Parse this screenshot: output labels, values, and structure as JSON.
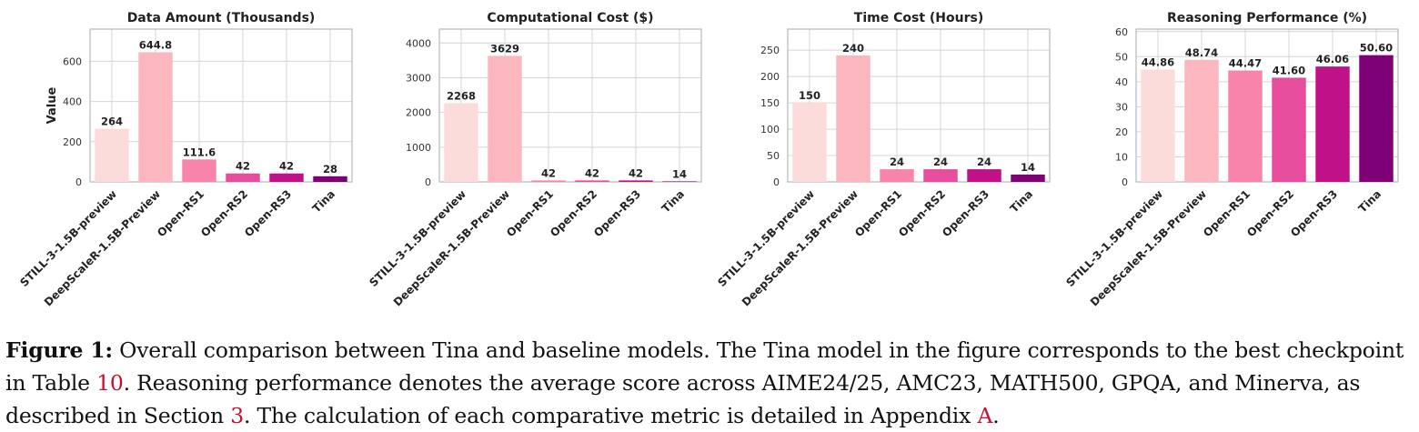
{
  "chart_data": [
    {
      "type": "bar",
      "title": "Data Amount (Thousands)",
      "ylabel": "Value",
      "categories": [
        "STILL-3-1.5B-preview",
        "DeepScaleR-1.5B-Preview",
        "Open-RS1",
        "Open-RS2",
        "Open-RS3",
        "Tina"
      ],
      "values": [
        264,
        644.8,
        111.6,
        42,
        42,
        28
      ],
      "value_labels": [
        "264",
        "644.8",
        "111.6",
        "42",
        "42",
        "28"
      ],
      "ylim": [
        0,
        760
      ],
      "yticks": [
        0,
        200,
        400,
        600
      ],
      "grid": true
    },
    {
      "type": "bar",
      "title": "Computational Cost ($)",
      "ylabel": "",
      "categories": [
        "STILL-3-1.5B-preview",
        "DeepScaleR-1.5B-Preview",
        "Open-RS1",
        "Open-RS2",
        "Open-RS3",
        "Tina"
      ],
      "values": [
        2268,
        3629,
        42,
        42,
        42,
        14
      ],
      "value_labels": [
        "2268",
        "3629",
        "42",
        "42",
        "42",
        "14"
      ],
      "ylim": [
        0,
        4400
      ],
      "yticks": [
        0,
        1000,
        2000,
        3000,
        4000
      ],
      "grid": true
    },
    {
      "type": "bar",
      "title": "Time Cost (Hours)",
      "ylabel": "",
      "categories": [
        "STILL-3-1.5B-preview",
        "DeepScaleR-1.5B-Preview",
        "Open-RS1",
        "Open-RS2",
        "Open-RS3",
        "Tina"
      ],
      "values": [
        150,
        240,
        24,
        24,
        24,
        14
      ],
      "value_labels": [
        "150",
        "240",
        "24",
        "24",
        "24",
        "14"
      ],
      "ylim": [
        0,
        290
      ],
      "yticks": [
        0,
        50,
        100,
        150,
        200,
        250
      ],
      "grid": true
    },
    {
      "type": "bar",
      "title": "Reasoning Performance (%)",
      "ylabel": "",
      "categories": [
        "STILL-3-1.5B-preview",
        "DeepScaleR-1.5B-Preview",
        "Open-RS1",
        "Open-RS2",
        "Open-RS3",
        "Tina"
      ],
      "values": [
        44.86,
        48.74,
        44.47,
        41.6,
        46.06,
        50.6
      ],
      "value_labels": [
        "44.86",
        "48.74",
        "44.47",
        "41.60",
        "46.06",
        "50.60"
      ],
      "ylim": [
        0,
        61
      ],
      "yticks": [
        0,
        10,
        20,
        30,
        40,
        50,
        60
      ],
      "grid": true
    }
  ],
  "colors": [
    "#fcdcdb",
    "#fbb7bd",
    "#f883ab",
    "#e64d9c",
    "#bf1288",
    "#7d0075"
  ],
  "caption": {
    "label": "Figure 1:",
    "text_1": " Overall comparison between Tina and baseline models. The Tina model in the figure corresponds to the best checkpoint in Table ",
    "ref_table": "10",
    "text_2": ". Reasoning performance denotes the average score across AIME24/25, AMC23, MATH500, GPQA, and Minerva, as described in Section ",
    "ref_section": "3",
    "text_3": ". The calculation of each comparative metric is detailed in Appendix ",
    "ref_appendix": "A",
    "text_4": "."
  }
}
